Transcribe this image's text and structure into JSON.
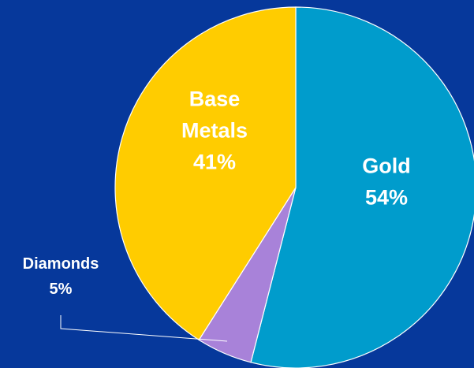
{
  "chart_data": {
    "type": "pie",
    "title": "",
    "slices": [
      {
        "name": "Gold",
        "value": 54,
        "label_name": "Gold",
        "label_pct": "54%",
        "color": "#009ccc"
      },
      {
        "name": "Diamonds",
        "value": 5,
        "label_name": "Diamonds",
        "label_pct": "5%",
        "color": "#a882d9"
      },
      {
        "name": "Base Metals",
        "value": 41,
        "label_name": "Base\nMetals",
        "label_pct": "41%",
        "color": "#ffcc00"
      }
    ],
    "background": "#06389b",
    "start_angle": "12 o'clock",
    "direction": "clockwise"
  }
}
